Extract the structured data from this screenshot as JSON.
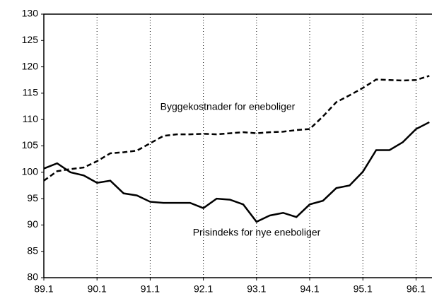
{
  "chart_data": {
    "type": "line",
    "x": [
      89,
      89.25,
      89.5,
      89.75,
      90,
      90.25,
      90.5,
      90.75,
      91,
      91.25,
      91.5,
      91.75,
      92,
      92.25,
      92.5,
      92.75,
      93,
      93.25,
      93.5,
      93.75,
      94,
      94.25,
      94.5,
      94.75,
      95,
      95.25,
      95.5,
      95.75,
      96,
      96.25
    ],
    "series": [
      {
        "name": "Byggekostnader for eneboliger",
        "color": "#000000",
        "dash": true,
        "values": [
          98.4,
          100.2,
          100.6,
          100.9,
          102.1,
          103.6,
          103.8,
          104.1,
          105.5,
          106.9,
          107.2,
          107.2,
          107.3,
          107.2,
          107.4,
          107.6,
          107.4,
          107.6,
          107.7,
          108.0,
          108.2,
          110.6,
          113.3,
          114.6,
          116.0,
          117.6,
          117.5,
          117.4,
          117.5,
          118.3
        ]
      },
      {
        "name": "Prisindeks for nye eneboliger",
        "color": "#000000",
        "dash": false,
        "values": [
          100.7,
          101.7,
          100.0,
          99.4,
          98.0,
          98.4,
          96.0,
          95.6,
          94.4,
          94.2,
          94.2,
          94.2,
          93.2,
          95.0,
          94.8,
          93.9,
          90.6,
          91.8,
          92.3,
          91.5,
          93.9,
          94.6,
          97.0,
          97.5,
          100.1,
          104.2,
          104.2,
          105.7,
          108.2,
          109.5
        ]
      }
    ],
    "xlim": [
      89,
      96.3
    ],
    "xticks": [
      {
        "value": 89,
        "label": "89.1"
      },
      {
        "value": 90,
        "label": "90.1"
      },
      {
        "value": 91,
        "label": "91.1"
      },
      {
        "value": 92,
        "label": "92.1"
      },
      {
        "value": 93,
        "label": "93.1"
      },
      {
        "value": 94,
        "label": "94.1"
      },
      {
        "value": 95,
        "label": "95.1"
      },
      {
        "value": 96,
        "label": "96.1"
      }
    ],
    "ylim": [
      80,
      130
    ],
    "yticks": [
      80,
      85,
      90,
      95,
      100,
      105,
      110,
      115,
      120,
      125,
      130
    ],
    "grid": true
  }
}
